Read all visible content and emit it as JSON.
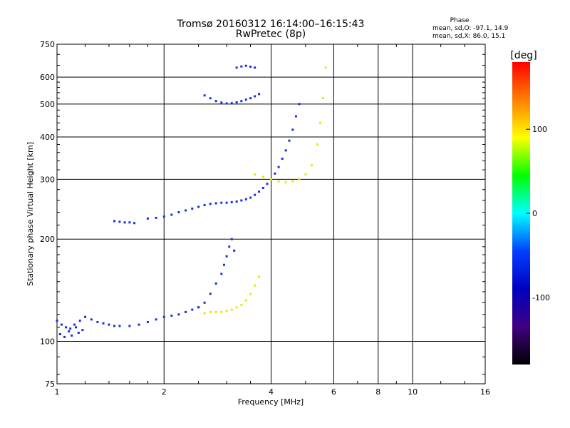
{
  "chart_data": {
    "type": "scatter",
    "title": "Tromsø 20160312 16:14:00–16:15:43",
    "subtitle": "RwPretec (8p)",
    "xlabel": "Frequency [MHz]",
    "ylabel": "Stationary phase Virtual Height [km]",
    "x_scale": "log",
    "y_scale": "log",
    "xlim": [
      1,
      16
    ],
    "ylim": [
      75,
      750
    ],
    "x_ticks": [
      1,
      2,
      4,
      6,
      8,
      10,
      16
    ],
    "x_tick_labels": [
      "1",
      "2",
      "4",
      "6",
      "8",
      "10",
      "16"
    ],
    "y_ticks": [
      75,
      100,
      200,
      300,
      400,
      500,
      600,
      750
    ],
    "y_tick_labels": [
      "75",
      "100",
      "200",
      "300",
      "400",
      "500",
      "600",
      "750"
    ],
    "grid": true,
    "phase_legend": {
      "title": "Phase",
      "line1": "mean, sd,O: -97.1, 14.9",
      "line2": "mean, sd,X: 86.0, 15.1"
    },
    "colorbar": {
      "label": "[deg]",
      "range": [
        -180,
        180
      ],
      "ticks": [
        100,
        0,
        -100
      ],
      "tick_labels": [
        "100",
        "0",
        "-100"
      ],
      "colors": [
        "#ff0000",
        "#ff8000",
        "#ffff00",
        "#00ff00",
        "#00ffff",
        "#0040ff",
        "#0000c0",
        "#400080",
        "#000000"
      ]
    },
    "series": [
      {
        "mode": "O",
        "color": "#1a2ee0",
        "traces": [
          {
            "x": [
              1.0,
              1.03,
              1.06,
              1.09,
              1.12,
              1.16,
              1.2,
              1.25,
              1.3,
              1.35,
              1.4,
              1.45,
              1.5,
              1.6,
              1.7,
              1.8,
              1.9,
              2.0,
              2.1,
              2.2,
              2.3,
              2.4,
              2.5
            ],
            "y": [
              115,
              112,
              110,
              109,
              112,
              115,
              118,
              116,
              114,
              113,
              112,
              111,
              111,
              111,
              112,
              114,
              116,
              118,
              119,
              120,
              122,
              124,
              126
            ]
          },
          {
            "x": [
              1.02,
              1.05,
              1.08,
              1.1,
              1.13,
              1.15,
              1.18
            ],
            "y": [
              105,
              103,
              107,
              104,
              110,
              106,
              108
            ]
          },
          {
            "x": [
              2.5,
              2.6,
              2.7,
              2.8,
              2.9,
              2.95,
              3.0,
              3.05,
              3.1,
              3.15
            ],
            "y": [
              126,
              130,
              138,
              148,
              158,
              168,
              178,
              190,
              200,
              185
            ]
          },
          {
            "x": [
              1.45,
              1.5,
              1.55,
              1.6,
              1.65
            ],
            "y": [
              226,
              225,
              224,
              224,
              223
            ]
          },
          {
            "x": [
              1.8,
              1.9,
              2.0,
              2.1,
              2.2,
              2.3,
              2.4,
              2.5,
              2.6,
              2.7,
              2.8,
              2.9,
              3.0,
              3.1,
              3.2,
              3.3,
              3.4,
              3.5,
              3.6,
              3.7,
              3.8,
              3.9,
              4.0,
              4.1,
              4.2,
              4.3,
              4.4,
              4.5,
              4.6,
              4.7,
              4.8
            ],
            "y": [
              230,
              231,
              233,
              236,
              240,
              243,
              246,
              249,
              252,
              254,
              255,
              256,
              256,
              257,
              258,
              260,
              262,
              265,
              270,
              276,
              283,
              291,
              300,
              312,
              326,
              345,
              365,
              390,
              420,
              460,
              500
            ]
          },
          {
            "x": [
              2.6,
              2.7,
              2.8,
              2.9,
              3.0,
              3.1,
              3.2,
              3.3,
              3.4,
              3.5,
              3.6,
              3.7
            ],
            "y": [
              530,
              520,
              510,
              505,
              502,
              503,
              506,
              510,
              515,
              520,
              527,
              535
            ]
          },
          {
            "x": [
              3.2,
              3.3,
              3.4,
              3.5,
              3.6
            ],
            "y": [
              640,
              645,
              648,
              644,
              640
            ]
          }
        ]
      },
      {
        "mode": "X",
        "color": "#e8e800",
        "traces": [
          {
            "x": [
              2.6,
              2.7,
              2.8,
              2.9,
              3.0,
              3.1,
              3.2,
              3.3,
              3.4,
              3.5,
              3.6,
              3.7
            ],
            "y": [
              121,
              122,
              122,
              122,
              123,
              124,
              126,
              128,
              132,
              138,
              146,
              155
            ]
          },
          {
            "x": [
              3.6,
              3.8,
              4.0,
              4.2,
              4.4,
              4.6,
              4.8,
              5.0,
              5.2,
              5.4,
              5.5,
              5.6,
              5.7
            ],
            "y": [
              310,
              305,
              300,
              296,
              294,
              296,
              300,
              310,
              330,
              380,
              440,
              520,
              640
            ]
          }
        ]
      }
    ]
  }
}
